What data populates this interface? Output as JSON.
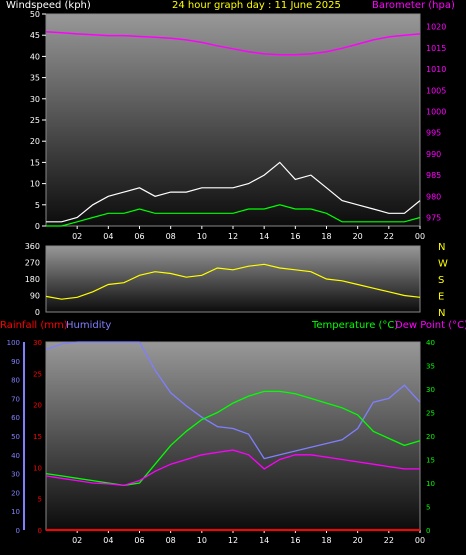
{
  "header": {
    "windspeed_label": "Windspeed (kph)",
    "title": "24 hour graph day : 11 June 2025",
    "barometer_label": "Barometer (hpa)"
  },
  "lower_header": {
    "rainfall_label": "Rainfall (mm)",
    "humidity_label": "Humidity",
    "temperature_label": "Temperature (°C)",
    "dewpoint_label": "Dew Point (°C)"
  },
  "colors": {
    "background": "#000000",
    "windspeed_label": "#ffffff",
    "title": "#ffff00",
    "barometer": "#ff00ff",
    "wind_gust": "#ffffff",
    "wind_avg": "#00ff00",
    "wind_dir": "#ffff00",
    "rainfall": "#ff0000",
    "humidity": "#7f7fff",
    "temperature": "#00ff00",
    "dewpoint": "#ff00ff",
    "axis_left_rain": "#ff0000",
    "axis_left_hum": "#8080ff",
    "axis_right_temp": "#00ff00",
    "ticks": "#ffffff",
    "compass": "#ffff00"
  },
  "chart_data": [
    {
      "type": "line",
      "name_key": "wind_baro",
      "x_ticks": [
        "02",
        "04",
        "06",
        "08",
        "10",
        "12",
        "14",
        "16",
        "18",
        "20",
        "22",
        "00"
      ],
      "y_left_ticks": [
        "0",
        "5",
        "10",
        "15",
        "20",
        "25",
        "30",
        "35",
        "40",
        "45",
        "50"
      ],
      "y_left_range": [
        0,
        50
      ],
      "y_right_ticks": [
        "975",
        "980",
        "985",
        "990",
        "995",
        "1000",
        "1005",
        "1010",
        "1015",
        "1020"
      ],
      "y_right_range": [
        973,
        1023
      ],
      "x_hours": [
        0,
        1,
        2,
        3,
        4,
        5,
        6,
        7,
        8,
        9,
        10,
        11,
        12,
        13,
        14,
        15,
        16,
        17,
        18,
        19,
        20,
        21,
        22,
        23,
        24
      ],
      "barometer": [
        1018.8,
        1018.6,
        1018.3,
        1018.1,
        1017.9,
        1017.9,
        1017.7,
        1017.5,
        1017.3,
        1016.9,
        1016.3,
        1015.5,
        1014.8,
        1014.1,
        1013.6,
        1013.4,
        1013.4,
        1013.6,
        1014.1,
        1014.9,
        1015.9,
        1016.9,
        1017.6,
        1018.0,
        1018.3
      ],
      "wind_gust": [
        1,
        1,
        2,
        5,
        7,
        8,
        9,
        7,
        8,
        8,
        9,
        9,
        9,
        10,
        12,
        15,
        11,
        12,
        9,
        6,
        5,
        4,
        3,
        3,
        6
      ],
      "wind_avg": [
        0,
        0,
        1,
        2,
        3,
        3,
        4,
        3,
        3,
        3,
        3,
        3,
        3,
        4,
        4,
        5,
        4,
        4,
        3,
        1,
        1,
        1,
        1,
        1,
        2
      ]
    },
    {
      "type": "line",
      "name_key": "wind_direction",
      "x_ticks": [
        "02",
        "04",
        "06",
        "08",
        "10",
        "12",
        "14",
        "16",
        "18",
        "20",
        "22",
        "00"
      ],
      "y_ticks": [
        "0",
        "90",
        "180",
        "270",
        "360"
      ],
      "y_range": [
        0,
        360
      ],
      "compass": [
        "N",
        "W",
        "S",
        "E",
        "N"
      ],
      "x_hours": [
        0,
        1,
        2,
        3,
        4,
        5,
        6,
        7,
        8,
        9,
        10,
        11,
        12,
        13,
        14,
        15,
        16,
        17,
        18,
        19,
        20,
        21,
        22,
        23,
        24
      ],
      "direction": [
        85,
        70,
        80,
        110,
        150,
        160,
        200,
        220,
        210,
        190,
        200,
        240,
        230,
        250,
        260,
        240,
        230,
        220,
        180,
        170,
        150,
        130,
        110,
        90,
        80
      ]
    },
    {
      "type": "line",
      "name_key": "temp_hum_rain",
      "x_ticks": [
        "02",
        "04",
        "06",
        "08",
        "10",
        "12",
        "14",
        "16",
        "18",
        "20",
        "22",
        "00"
      ],
      "y_rain_ticks": [
        "0",
        "5",
        "10",
        "15",
        "20",
        "25",
        "30"
      ],
      "y_rain_range": [
        0,
        30
      ],
      "y_hum_ticks": [
        "0",
        "10",
        "20",
        "30",
        "40",
        "50",
        "60",
        "70",
        "80",
        "90",
        "100"
      ],
      "y_hum_range": [
        0,
        100
      ],
      "y_temp_ticks": [
        "0",
        "5",
        "10",
        "15",
        "20",
        "25",
        "30",
        "35",
        "40"
      ],
      "y_temp_range": [
        0,
        40
      ],
      "x_hours": [
        0,
        1,
        2,
        3,
        4,
        5,
        6,
        7,
        8,
        9,
        10,
        11,
        12,
        13,
        14,
        15,
        16,
        17,
        18,
        19,
        20,
        21,
        22,
        23,
        24
      ],
      "temperature": [
        12,
        11.5,
        11,
        10.5,
        10,
        9.5,
        10,
        14,
        18,
        21,
        23.5,
        25,
        27,
        28.5,
        29.5,
        29.5,
        29,
        28,
        27,
        26,
        24.5,
        21,
        19.5,
        18,
        19
      ],
      "dewpoint": [
        11.5,
        11,
        10.5,
        10,
        9.8,
        9.5,
        10.5,
        12.5,
        14,
        15,
        16,
        16.5,
        17,
        16,
        13,
        15,
        16,
        16,
        15.5,
        15,
        14.5,
        14,
        13.5,
        13,
        13
      ],
      "humidity": [
        96,
        99,
        100,
        100,
        100,
        100,
        100,
        85,
        73,
        66,
        60,
        55,
        54,
        51,
        38,
        40,
        42,
        44,
        46,
        48,
        54,
        68,
        70,
        77,
        68
      ],
      "rainfall": [
        0,
        0,
        0,
        0,
        0,
        0,
        0,
        0,
        0,
        0,
        0,
        0,
        0,
        0,
        0,
        0,
        0,
        0,
        0,
        0,
        0,
        0,
        0,
        0,
        0
      ]
    }
  ]
}
